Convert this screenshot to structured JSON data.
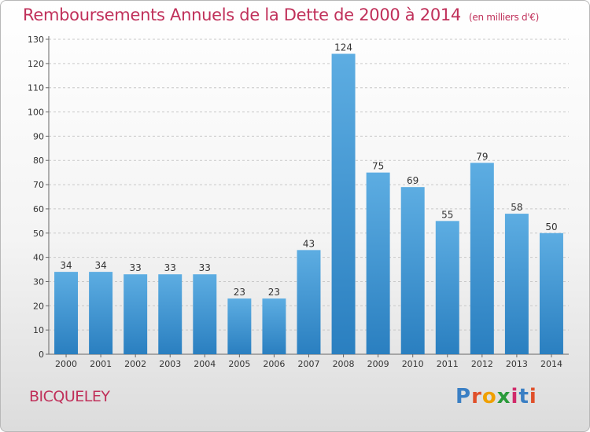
{
  "title": "Remboursements Annuels de la Dette de 2000 à 2014",
  "unit": "(en milliers d'€)",
  "town": "BICQUELEY",
  "logo": "Proxiti",
  "colors": {
    "title": "#c0305a",
    "bar_top": "#5dade2",
    "bar_bottom": "#2a7fc0"
  },
  "chart_data": {
    "type": "bar",
    "title": "Remboursements Annuels de la Dette de 2000 à 2014",
    "xlabel": "",
    "ylabel": "",
    "categories": [
      "2000",
      "2001",
      "2002",
      "2003",
      "2004",
      "2005",
      "2006",
      "2007",
      "2008",
      "2009",
      "2010",
      "2011",
      "2012",
      "2013",
      "2014"
    ],
    "values": [
      34,
      34,
      33,
      33,
      33,
      23,
      23,
      43,
      124,
      75,
      69,
      55,
      79,
      58,
      50
    ],
    "ylim": [
      0,
      130
    ],
    "yticks": [
      0,
      10,
      20,
      30,
      40,
      50,
      60,
      70,
      80,
      90,
      100,
      110,
      120,
      130
    ],
    "grid": "horizontal dashed",
    "legend": "none"
  }
}
